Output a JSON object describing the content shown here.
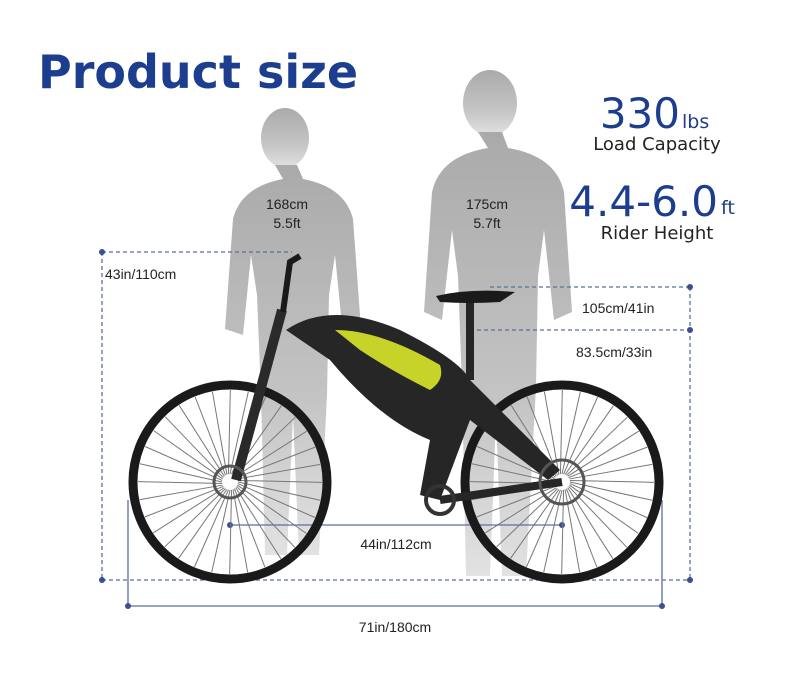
{
  "header": {
    "title": "Product size"
  },
  "riders": [
    {
      "height_cm": "168cm",
      "height_ft": "5.5ft"
    },
    {
      "height_cm": "175cm",
      "height_ft": "5.7ft"
    }
  ],
  "specs": {
    "load": {
      "value": 330,
      "unit": "lbs",
      "label": "Load Capacity"
    },
    "rider_height": {
      "value": "4.4-6.0",
      "unit": "ft",
      "label": "Rider Height"
    }
  },
  "dimensions": {
    "handlebar_height": "43in/110cm",
    "seat_max": "105cm/41in",
    "seat_min": "83.5cm/33in",
    "wheelbase": "44in/112cm",
    "length": "71in/180cm"
  }
}
